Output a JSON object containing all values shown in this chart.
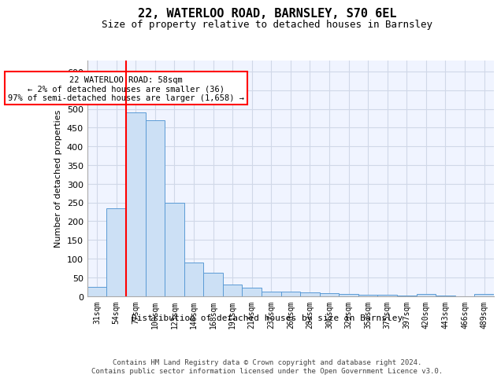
{
  "title": "22, WATERLOO ROAD, BARNSLEY, S70 6EL",
  "subtitle": "Size of property relative to detached houses in Barnsley",
  "xlabel": "Distribution of detached houses by size in Barnsley",
  "ylabel": "Number of detached properties",
  "categories": [
    "31sqm",
    "54sqm",
    "77sqm",
    "100sqm",
    "123sqm",
    "146sqm",
    "168sqm",
    "191sqm",
    "214sqm",
    "237sqm",
    "260sqm",
    "283sqm",
    "306sqm",
    "329sqm",
    "352sqm",
    "375sqm",
    "397sqm",
    "420sqm",
    "443sqm",
    "466sqm",
    "489sqm"
  ],
  "values": [
    25,
    235,
    490,
    470,
    250,
    90,
    62,
    30,
    22,
    12,
    11,
    10,
    8,
    5,
    4,
    3,
    2,
    6,
    2,
    0,
    5
  ],
  "bar_color": "#cce0f5",
  "bar_edge_color": "#5b9bd5",
  "grid_color": "#d0d8e8",
  "background_color": "#f0f4ff",
  "red_line_x": 1,
  "annotation_text": "22 WATERLOO ROAD: 58sqm\n← 2% of detached houses are smaller (36)\n97% of semi-detached houses are larger (1,658) →",
  "annotation_box_color": "white",
  "annotation_border_color": "red",
  "footer_text": "Contains HM Land Registry data © Crown copyright and database right 2024.\nContains public sector information licensed under the Open Government Licence v3.0.",
  "ylim": [
    0,
    630
  ],
  "yticks": [
    0,
    50,
    100,
    150,
    200,
    250,
    300,
    350,
    400,
    450,
    500,
    550,
    600
  ]
}
